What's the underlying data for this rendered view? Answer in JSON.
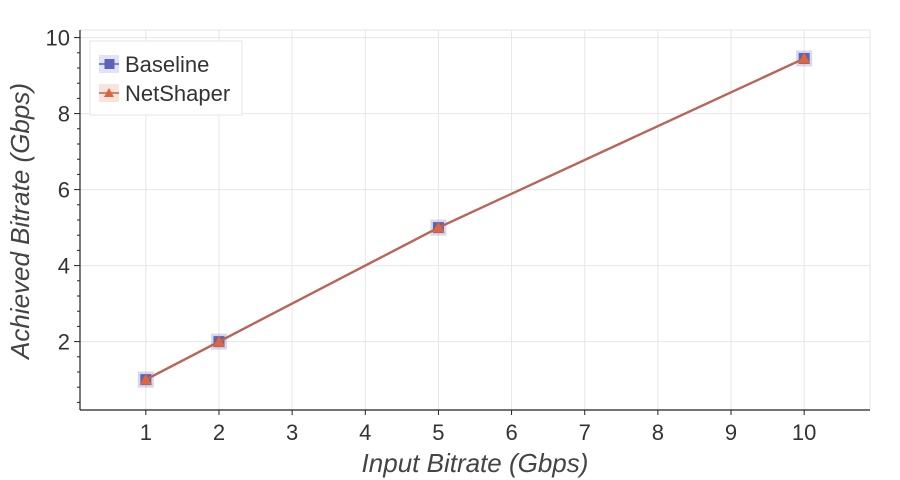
{
  "chart_data": {
    "type": "line",
    "xlabel": "Input Bitrate (Gbps)",
    "ylabel": "Achieved Bitrate (Gbps)",
    "x_ticks": [
      "1",
      "2",
      "3",
      "4",
      "5",
      "6",
      "7",
      "8",
      "9",
      "10"
    ],
    "y_ticks": [
      "2",
      "4",
      "6",
      "8",
      "10"
    ],
    "xlim": [
      0.1,
      10.9
    ],
    "ylim": [
      0.2,
      10.2
    ],
    "grid": true,
    "legend_position": "top-left",
    "series": [
      {
        "name": "Baseline",
        "marker": "square",
        "color": "#5b63bd",
        "x": [
          1,
          2,
          5,
          10
        ],
        "y": [
          1,
          2,
          5,
          9.45
        ]
      },
      {
        "name": "NetShaper",
        "marker": "triangle",
        "color": "#e0653a",
        "line_color": "#c0634f",
        "x": [
          1,
          2,
          5,
          10
        ],
        "y": [
          1,
          2,
          5,
          9.45
        ]
      }
    ]
  }
}
